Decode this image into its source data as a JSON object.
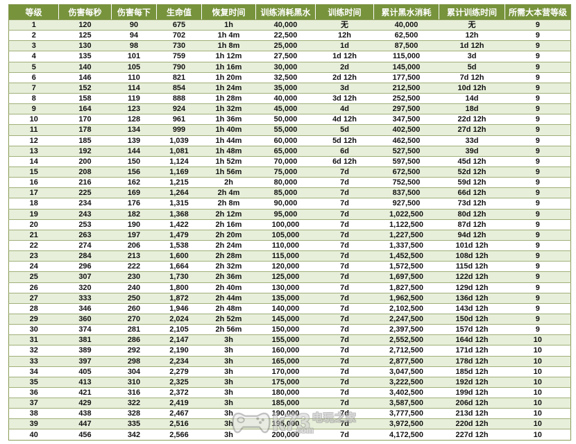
{
  "watermark": {
    "site": "k73",
    "domain": ".com",
    "name": "电玩之家"
  },
  "colors": {
    "header_bg": "#77933C",
    "header_text": "#FFFFFF",
    "row_alt_bg": "#E7EFDA",
    "row_bg": "#FFFFFF",
    "row_border": "#9FAF78",
    "outer_border": "#8A9C55"
  },
  "chart_data": {
    "type": "table",
    "title": "",
    "headers": [
      "等级",
      "伤害每秒",
      "伤害每下",
      "生命值",
      "恢复时间",
      "训练消耗黑水",
      "训练时间",
      "累计黑水消耗",
      "累计训练时间",
      "所需大本营等级"
    ],
    "rows": [
      [
        "1",
        "120",
        "90",
        "675",
        "1h",
        "40,000",
        "无",
        "40,000",
        "无",
        "9"
      ],
      [
        "2",
        "125",
        "94",
        "702",
        "1h 4m",
        "22,500",
        "12h",
        "62,500",
        "12h",
        "9"
      ],
      [
        "3",
        "130",
        "98",
        "730",
        "1h 8m",
        "25,000",
        "1d",
        "87,500",
        "1d 12h",
        "9"
      ],
      [
        "4",
        "135",
        "101",
        "759",
        "1h 12m",
        "27,500",
        "1d 12h",
        "115,000",
        "3d",
        "9"
      ],
      [
        "5",
        "140",
        "105",
        "790",
        "1h 16m",
        "30,000",
        "2d",
        "145,000",
        "5d",
        "9"
      ],
      [
        "6",
        "146",
        "110",
        "821",
        "1h 20m",
        "32,500",
        "2d 12h",
        "177,500",
        "7d 12h",
        "9"
      ],
      [
        "7",
        "152",
        "114",
        "854",
        "1h 24m",
        "35,000",
        "3d",
        "212,500",
        "10d 12h",
        "9"
      ],
      [
        "8",
        "158",
        "119",
        "888",
        "1h 28m",
        "40,000",
        "3d 12h",
        "252,500",
        "14d",
        "9"
      ],
      [
        "9",
        "164",
        "123",
        "924",
        "1h 32m",
        "45,000",
        "4d",
        "297,500",
        "18d",
        "9"
      ],
      [
        "10",
        "170",
        "128",
        "961",
        "1h 36m",
        "50,000",
        "4d 12h",
        "347,500",
        "22d 12h",
        "9"
      ],
      [
        "11",
        "178",
        "134",
        "999",
        "1h 40m",
        "55,000",
        "5d",
        "402,500",
        "27d 12h",
        "9"
      ],
      [
        "12",
        "185",
        "139",
        "1,039",
        "1h 44m",
        "60,000",
        "5d 12h",
        "462,500",
        "33d",
        "9"
      ],
      [
        "13",
        "192",
        "144",
        "1,081",
        "1h 48m",
        "65,000",
        "6d",
        "527,500",
        "39d",
        "9"
      ],
      [
        "14",
        "200",
        "150",
        "1,124",
        "1h 52m",
        "70,000",
        "6d 12h",
        "597,500",
        "45d 12h",
        "9"
      ],
      [
        "15",
        "208",
        "156",
        "1,169",
        "1h 56m",
        "75,000",
        "7d",
        "672,500",
        "52d 12h",
        "9"
      ],
      [
        "16",
        "216",
        "162",
        "1,215",
        "2h",
        "80,000",
        "7d",
        "752,500",
        "59d 12h",
        "9"
      ],
      [
        "17",
        "225",
        "169",
        "1,264",
        "2h 4m",
        "85,000",
        "7d",
        "837,500",
        "66d 12h",
        "9"
      ],
      [
        "18",
        "234",
        "176",
        "1,315",
        "2h 8m",
        "90,000",
        "7d",
        "927,500",
        "73d 12h",
        "9"
      ],
      [
        "19",
        "243",
        "182",
        "1,368",
        "2h 12m",
        "95,000",
        "7d",
        "1,022,500",
        "80d 12h",
        "9"
      ],
      [
        "20",
        "253",
        "190",
        "1,422",
        "2h 16m",
        "100,000",
        "7d",
        "1,122,500",
        "87d 12h",
        "9"
      ],
      [
        "21",
        "263",
        "197",
        "1,479",
        "2h 20m",
        "105,000",
        "7d",
        "1,227,500",
        "94d 12h",
        "9"
      ],
      [
        "22",
        "274",
        "206",
        "1,538",
        "2h 24m",
        "110,000",
        "7d",
        "1,337,500",
        "101d 12h",
        "9"
      ],
      [
        "23",
        "284",
        "213",
        "1,600",
        "2h 28m",
        "115,000",
        "7d",
        "1,452,500",
        "108d 12h",
        "9"
      ],
      [
        "24",
        "296",
        "222",
        "1,664",
        "2h 32m",
        "120,000",
        "7d",
        "1,572,500",
        "115d 12h",
        "9"
      ],
      [
        "25",
        "307",
        "230",
        "1,730",
        "2h 36m",
        "125,000",
        "7d",
        "1,697,500",
        "122d 12h",
        "9"
      ],
      [
        "26",
        "320",
        "240",
        "1,800",
        "2h 40m",
        "130,000",
        "7d",
        "1,827,500",
        "129d 12h",
        "9"
      ],
      [
        "27",
        "333",
        "250",
        "1,872",
        "2h 44m",
        "135,000",
        "7d",
        "1,962,500",
        "136d 12h",
        "9"
      ],
      [
        "28",
        "346",
        "260",
        "1,946",
        "2h 48m",
        "140,000",
        "7d",
        "2,102,500",
        "143d 12h",
        "9"
      ],
      [
        "29",
        "360",
        "270",
        "2,024",
        "2h 52m",
        "145,000",
        "7d",
        "2,247,500",
        "150d 12h",
        "9"
      ],
      [
        "30",
        "374",
        "281",
        "2,105",
        "2h 56m",
        "150,000",
        "7d",
        "2,397,500",
        "157d 12h",
        "9"
      ],
      [
        "31",
        "381",
        "286",
        "2,147",
        "3h",
        "155,000",
        "7d",
        "2,552,500",
        "164d 12h",
        "10"
      ],
      [
        "32",
        "389",
        "292",
        "2,190",
        "3h",
        "160,000",
        "7d",
        "2,712,500",
        "171d 12h",
        "10"
      ],
      [
        "33",
        "397",
        "298",
        "2,234",
        "3h",
        "165,000",
        "7d",
        "2,877,500",
        "178d 12h",
        "10"
      ],
      [
        "34",
        "405",
        "304",
        "2,279",
        "3h",
        "170,000",
        "7d",
        "3,047,500",
        "185d 12h",
        "10"
      ],
      [
        "35",
        "413",
        "310",
        "2,325",
        "3h",
        "175,000",
        "7d",
        "3,222,500",
        "192d 12h",
        "10"
      ],
      [
        "36",
        "421",
        "316",
        "2,372",
        "3h",
        "180,000",
        "7d",
        "3,402,500",
        "199d 12h",
        "10"
      ],
      [
        "37",
        "429",
        "322",
        "2,419",
        "3h",
        "185,000",
        "7d",
        "3,587,500",
        "206d 12h",
        "10"
      ],
      [
        "38",
        "438",
        "328",
        "2,467",
        "3h",
        "190,000",
        "7d",
        "3,777,500",
        "213d 12h",
        "10"
      ],
      [
        "39",
        "447",
        "335",
        "2,516",
        "3h",
        "195,000",
        "7d",
        "3,972,500",
        "220d 12h",
        "10"
      ],
      [
        "40",
        "456",
        "342",
        "2,566",
        "3h",
        "200,000",
        "7d",
        "4,172,500",
        "227d 12h",
        "10"
      ]
    ]
  }
}
